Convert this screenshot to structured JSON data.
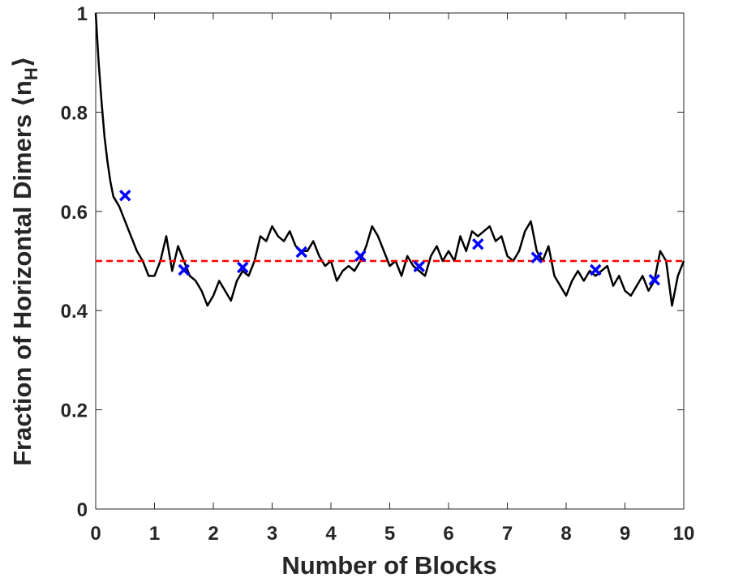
{
  "chart_data": {
    "type": "line",
    "xlabel": "Number of Blocks",
    "ylabel": {
      "text": "Fraction of Horizontal Dimers ⟨n",
      "sub": "H",
      "end": "⟩"
    },
    "xlim": [
      0,
      10
    ],
    "xticks": [
      0,
      1,
      2,
      3,
      4,
      5,
      6,
      7,
      8,
      9,
      10
    ],
    "ylim": [
      0,
      1
    ],
    "yticks": [
      0,
      0.2,
      0.4,
      0.6,
      0.8,
      1
    ],
    "grid": false,
    "box": true,
    "series": [
      {
        "style": "solid",
        "color": "#000000",
        "x": [
          0,
          0.05,
          0.1,
          0.15,
          0.2,
          0.25,
          0.3,
          0.4,
          0.5,
          0.6,
          0.7,
          0.8,
          0.9,
          1.0,
          1.1,
          1.2,
          1.3,
          1.4,
          1.5,
          1.6,
          1.7,
          1.8,
          1.9,
          2.0,
          2.1,
          2.2,
          2.3,
          2.4,
          2.5,
          2.6,
          2.7,
          2.8,
          2.9,
          3.0,
          3.1,
          3.2,
          3.3,
          3.4,
          3.5,
          3.6,
          3.7,
          3.8,
          3.9,
          4.0,
          4.1,
          4.2,
          4.3,
          4.4,
          4.5,
          4.6,
          4.7,
          4.8,
          4.9,
          5.0,
          5.1,
          5.2,
          5.3,
          5.4,
          5.5,
          5.6,
          5.7,
          5.8,
          5.9,
          6.0,
          6.1,
          6.2,
          6.3,
          6.4,
          6.5,
          6.6,
          6.7,
          6.8,
          6.9,
          7.0,
          7.1,
          7.2,
          7.3,
          7.4,
          7.5,
          7.6,
          7.7,
          7.8,
          7.9,
          8.0,
          8.1,
          8.2,
          8.3,
          8.4,
          8.5,
          8.6,
          8.7,
          8.8,
          8.9,
          9.0,
          9.1,
          9.2,
          9.3,
          9.4,
          9.5,
          9.6,
          9.7,
          9.8,
          9.9,
          10.0
        ],
        "values": [
          1.0,
          0.9,
          0.82,
          0.75,
          0.7,
          0.66,
          0.63,
          0.61,
          0.58,
          0.55,
          0.52,
          0.5,
          0.47,
          0.47,
          0.5,
          0.55,
          0.48,
          0.53,
          0.5,
          0.47,
          0.46,
          0.44,
          0.41,
          0.43,
          0.46,
          0.44,
          0.42,
          0.46,
          0.48,
          0.47,
          0.5,
          0.55,
          0.54,
          0.57,
          0.55,
          0.54,
          0.56,
          0.53,
          0.52,
          0.52,
          0.54,
          0.51,
          0.49,
          0.5,
          0.46,
          0.48,
          0.49,
          0.48,
          0.5,
          0.53,
          0.57,
          0.55,
          0.52,
          0.49,
          0.5,
          0.47,
          0.51,
          0.49,
          0.48,
          0.47,
          0.51,
          0.53,
          0.5,
          0.52,
          0.5,
          0.55,
          0.52,
          0.56,
          0.55,
          0.56,
          0.57,
          0.54,
          0.55,
          0.51,
          0.5,
          0.52,
          0.56,
          0.58,
          0.52,
          0.5,
          0.53,
          0.47,
          0.45,
          0.43,
          0.46,
          0.48,
          0.46,
          0.48,
          0.47,
          0.48,
          0.49,
          0.45,
          0.47,
          0.44,
          0.43,
          0.45,
          0.47,
          0.44,
          0.46,
          0.52,
          0.5,
          0.41,
          0.47,
          0.5
        ]
      },
      {
        "style": "dashed",
        "color": "#ff0000",
        "x": [
          0,
          10
        ],
        "values": [
          0.5,
          0.5
        ]
      },
      {
        "style": "x-marker",
        "color": "#0000ff",
        "x": [
          0.5,
          1.5,
          2.5,
          3.5,
          4.5,
          5.5,
          6.5,
          7.5,
          8.5,
          9.5
        ],
        "values": [
          0.632,
          0.482,
          0.487,
          0.518,
          0.51,
          0.489,
          0.534,
          0.507,
          0.482,
          0.462
        ]
      }
    ]
  }
}
